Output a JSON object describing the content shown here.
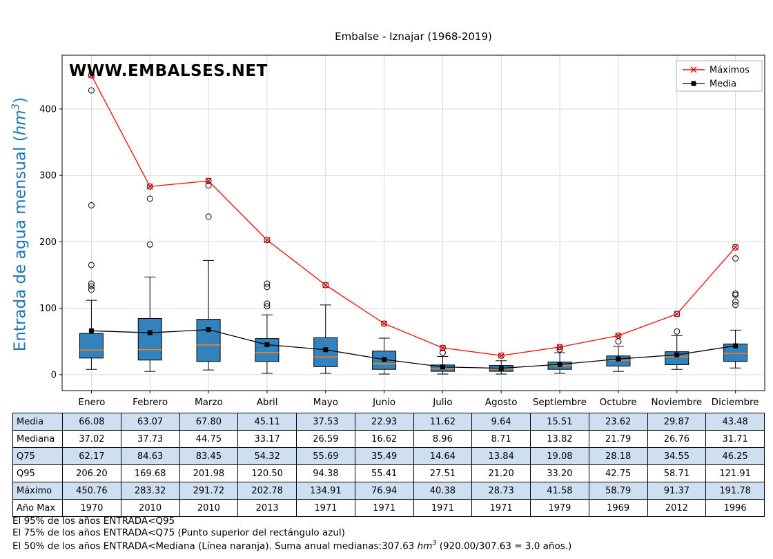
{
  "title": "Embalse - Iznajar (1968-2019)",
  "watermark": "WWW.EMBALSES.NET",
  "ylabel": {
    "pre": "Entrada de agua mensual (",
    "unit": "hm",
    "sup": "3",
    "post": ")"
  },
  "legend": {
    "maximos": "Máximos",
    "media": "Media"
  },
  "months": [
    "Enero",
    "Febrero",
    "Marzo",
    "Abril",
    "Mayo",
    "Junio",
    "Julio",
    "Agosto",
    "Septiembre",
    "Octubre",
    "Noviembre",
    "Diciembre"
  ],
  "table": {
    "rows": [
      {
        "label": "Media",
        "values": [
          "66.08",
          "63.07",
          "67.80",
          "45.11",
          "37.53",
          "22.93",
          "11.62",
          "9.64",
          "15.51",
          "23.62",
          "29.87",
          "43.48"
        ]
      },
      {
        "label": "Mediana",
        "values": [
          "37.02",
          "37.73",
          "44.75",
          "33.17",
          "26.59",
          "16.62",
          "8.96",
          "8.71",
          "13.82",
          "21.79",
          "26.76",
          "31.71"
        ]
      },
      {
        "label": "Q75",
        "values": [
          "62.17",
          "84.63",
          "83.45",
          "54.32",
          "55.69",
          "35.49",
          "14.64",
          "13.84",
          "19.08",
          "28.18",
          "34.55",
          "46.25"
        ]
      },
      {
        "label": "Q95",
        "values": [
          "206.20",
          "169.68",
          "201.98",
          "120.50",
          "94.38",
          "55.41",
          "27.51",
          "21.20",
          "33.20",
          "42.75",
          "58.71",
          "121.91"
        ]
      },
      {
        "label": "Máximo",
        "values": [
          "450.76",
          "283.32",
          "291.72",
          "202.78",
          "134.91",
          "76.94",
          "40.38",
          "28.73",
          "41.58",
          "58.79",
          "91.37",
          "191.78"
        ]
      },
      {
        "label": "Año Max",
        "values": [
          "1970",
          "2010",
          "2010",
          "2013",
          "1971",
          "1971",
          "1971",
          "1971",
          "1979",
          "1969",
          "2012",
          "1996"
        ]
      }
    ]
  },
  "footer": {
    "line1": "El 95% de los años ENTRADA<Q95",
    "line2": "El 75% de los años ENTRADA<Q75 (Punto superior del rectángulo azul)",
    "line3_pre": "El 50% de los años ENTRADA<Mediana (Línea naranja). Suma anual medianas:307.63 ",
    "line3_unit": "hm",
    "line3_sup": "3",
    "line3_post": " (920.00/307.63 = 3.0 años.)"
  },
  "chart_data": {
    "type": "boxplot+line",
    "title": "Embalse - Iznajar (1968-2019)",
    "ylabel": "Entrada de agua mensual (hm3)",
    "categories": [
      "Enero",
      "Febrero",
      "Marzo",
      "Abril",
      "Mayo",
      "Junio",
      "Julio",
      "Agosto",
      "Septiembre",
      "Octubre",
      "Noviembre",
      "Diciembre"
    ],
    "ylim": [
      -24,
      481
    ],
    "yticks": [
      0,
      100,
      200,
      300,
      400
    ],
    "grid": true,
    "legend_position": "top-right",
    "series": [
      {
        "name": "Máximos",
        "type": "line",
        "marker": "x",
        "color": "#ff0000",
        "values": [
          450.76,
          283.32,
          291.72,
          202.78,
          134.91,
          76.94,
          40.38,
          28.73,
          41.58,
          58.79,
          91.37,
          191.78
        ]
      },
      {
        "name": "Media",
        "type": "line",
        "marker": "square",
        "color": "#000000",
        "values": [
          66.08,
          63.07,
          67.8,
          45.11,
          37.53,
          22.93,
          11.62,
          9.64,
          15.51,
          23.62,
          29.87,
          43.48
        ]
      }
    ],
    "boxes": [
      {
        "label": "Enero",
        "mean": 66.08,
        "median": 37.02,
        "q1": 25,
        "q3": 62.17,
        "whisker_low": 8,
        "whisker_high": 112,
        "outliers": [
          128,
          133,
          137,
          165,
          255,
          428
        ],
        "max": 450.76,
        "max_year": 1970
      },
      {
        "label": "Febrero",
        "mean": 63.07,
        "median": 37.73,
        "q1": 22,
        "q3": 84.63,
        "whisker_low": 5,
        "whisker_high": 147,
        "outliers": [
          196,
          265
        ],
        "max": 283.32,
        "max_year": 2010
      },
      {
        "label": "Marzo",
        "mean": 67.8,
        "median": 44.75,
        "q1": 20,
        "q3": 83.45,
        "whisker_low": 7,
        "whisker_high": 172,
        "outliers": [
          238,
          285
        ],
        "max": 291.72,
        "max_year": 2010
      },
      {
        "label": "Abril",
        "mean": 45.11,
        "median": 33.17,
        "q1": 20,
        "q3": 54.32,
        "whisker_low": 2,
        "whisker_high": 90,
        "outliers": [
          103,
          107,
          132,
          137
        ],
        "max": 202.78,
        "max_year": 2013
      },
      {
        "label": "Mayo",
        "mean": 37.53,
        "median": 26.59,
        "q1": 12,
        "q3": 55.69,
        "whisker_low": 2,
        "whisker_high": 105,
        "outliers": [],
        "max": 134.91,
        "max_year": 1971
      },
      {
        "label": "Junio",
        "mean": 22.93,
        "median": 16.62,
        "q1": 8,
        "q3": 35.49,
        "whisker_low": 1,
        "whisker_high": 55,
        "outliers": [],
        "max": 76.94,
        "max_year": 1971
      },
      {
        "label": "Julio",
        "mean": 11.62,
        "median": 8.96,
        "q1": 5,
        "q3": 14.64,
        "whisker_low": 1,
        "whisker_high": 27.5,
        "outliers": [
          33
        ],
        "max": 40.38,
        "max_year": 1971
      },
      {
        "label": "Agosto",
        "mean": 9.64,
        "median": 8.71,
        "q1": 5,
        "q3": 13.84,
        "whisker_low": 1,
        "whisker_high": 21,
        "outliers": [],
        "max": 28.73,
        "max_year": 1971
      },
      {
        "label": "Septiembre",
        "mean": 15.51,
        "median": 13.82,
        "q1": 8,
        "q3": 19.08,
        "whisker_low": 2,
        "whisker_high": 33,
        "outliers": [
          38
        ],
        "max": 41.58,
        "max_year": 1979
      },
      {
        "label": "Octubre",
        "mean": 23.62,
        "median": 21.79,
        "q1": 13,
        "q3": 28.18,
        "whisker_low": 5,
        "whisker_high": 42.75,
        "outliers": [
          50
        ],
        "max": 58.79,
        "max_year": 1969
      },
      {
        "label": "Noviembre",
        "mean": 29.87,
        "median": 26.76,
        "q1": 15,
        "q3": 34.55,
        "whisker_low": 8,
        "whisker_high": 58.7,
        "outliers": [
          65
        ],
        "max": 91.37,
        "max_year": 2012
      },
      {
        "label": "Diciembre",
        "mean": 43.48,
        "median": 31.71,
        "q1": 20,
        "q3": 46.25,
        "whisker_low": 10,
        "whisker_high": 67,
        "outliers": [
          105,
          110,
          120,
          122,
          175
        ],
        "max": 191.78,
        "max_year": 1996
      }
    ],
    "colors": {
      "box_fill": "#3182bd",
      "median": "#ff7f0e",
      "max_line": "#ff0000",
      "mean_line": "#000000",
      "grid": "#d9d9d9",
      "shaded_row": "#cfdff2",
      "ylabel": "#1f77b4",
      "watermark": "#8ab4d6"
    }
  }
}
